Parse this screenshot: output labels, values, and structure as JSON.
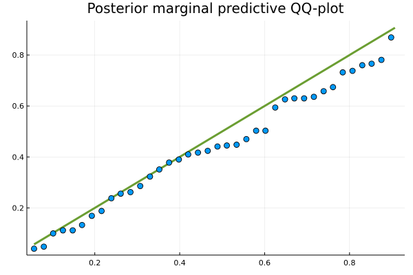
{
  "chart_data": {
    "type": "scatter",
    "title": "Posterior marginal predictive QQ-plot",
    "xlabel": "",
    "ylabel": "",
    "xlim": [
      0.04,
      0.93
    ],
    "ylim": [
      0.015,
      0.935
    ],
    "xticks": [
      0.2,
      0.4,
      0.6,
      0.8
    ],
    "yticks": [
      0.2,
      0.4,
      0.6,
      0.8
    ],
    "xtick_labels": [
      "0.2",
      "0.4",
      "0.6",
      "0.8"
    ],
    "ytick_labels": [
      "0.2",
      "0.4",
      "0.6",
      "0.8"
    ],
    "grid": true,
    "legend": "none",
    "series": [
      {
        "type": "scatter",
        "color": "#009AFA",
        "x": [
          0.057,
          0.08,
          0.102,
          0.125,
          0.148,
          0.17,
          0.193,
          0.216,
          0.239,
          0.261,
          0.284,
          0.307,
          0.33,
          0.352,
          0.375,
          0.398,
          0.42,
          0.443,
          0.466,
          0.489,
          0.511,
          0.534,
          0.557,
          0.58,
          0.602,
          0.625,
          0.648,
          0.67,
          0.693,
          0.716,
          0.739,
          0.761,
          0.784,
          0.807,
          0.83,
          0.852,
          0.875,
          0.898
        ],
        "y": [
          0.04,
          0.048,
          0.1,
          0.112,
          0.112,
          0.133,
          0.169,
          0.188,
          0.238,
          0.256,
          0.262,
          0.286,
          0.323,
          0.351,
          0.378,
          0.39,
          0.41,
          0.417,
          0.424,
          0.441,
          0.445,
          0.448,
          0.47,
          0.503,
          0.503,
          0.594,
          0.626,
          0.63,
          0.63,
          0.636,
          0.658,
          0.674,
          0.732,
          0.738,
          0.76,
          0.766,
          0.781,
          0.869
        ]
      },
      {
        "type": "line",
        "color": "#6B9E32",
        "x": [
          0.057,
          0.907
        ],
        "y": [
          0.057,
          0.907
        ]
      }
    ]
  }
}
